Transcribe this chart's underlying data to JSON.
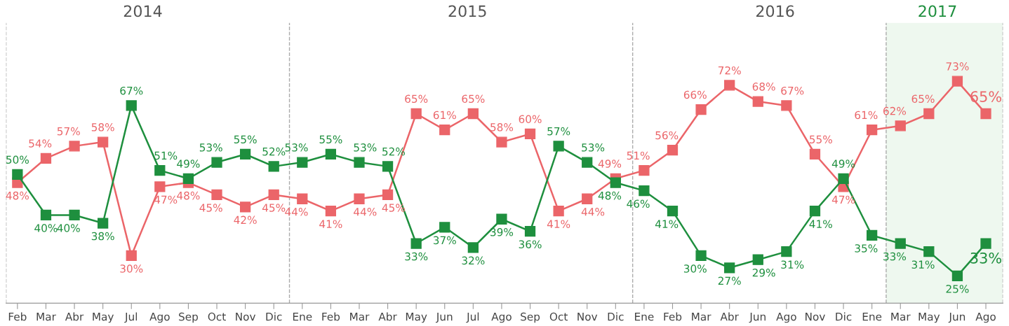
{
  "chart_data": {
    "type": "line",
    "categories": [
      "Feb",
      "Mar",
      "Abr",
      "May",
      "Jul",
      "Ago",
      "Sep",
      "Oct",
      "Nov",
      "Dic",
      "Ene",
      "Feb",
      "Mar",
      "Abr",
      "May",
      "Jun",
      "Jul",
      "Ago",
      "Sep",
      "Oct",
      "Nov",
      "Dic",
      "Ene",
      "Feb",
      "Mar",
      "Abr",
      "Jun",
      "Ago",
      "Nov",
      "Dic",
      "Ene",
      "Mar",
      "May",
      "Jun",
      "Ago"
    ],
    "series": [
      {
        "color": "#eb6569",
        "values": [
          48,
          54,
          57,
          58,
          30,
          47,
          48,
          45,
          42,
          45,
          44,
          41,
          44,
          45,
          65,
          61,
          65,
          58,
          60,
          41,
          44,
          49,
          51,
          56,
          66,
          72,
          68,
          67,
          55,
          47,
          61,
          62,
          65,
          73,
          65
        ],
        "value_labels": [
          "48%",
          "54%",
          "57%",
          "58%",
          "30%",
          "47%",
          "48%",
          "45%",
          "42%",
          "45%",
          "44%",
          "41%",
          "44%",
          "45%",
          "65%",
          "61%",
          "65%",
          "58%",
          "60%",
          "41%",
          "44%",
          "49%",
          "51%",
          "56%",
          "66%",
          "72%",
          "68%",
          "67%",
          "55%",
          "47%",
          "61%",
          "62%",
          "65%",
          "73%",
          "65%"
        ]
      },
      {
        "color": "#1e8f3e",
        "values": [
          50,
          40,
          40,
          38,
          67,
          51,
          49,
          53,
          55,
          52,
          53,
          55,
          53,
          52,
          33,
          37,
          32,
          39,
          36,
          57,
          53,
          48,
          46,
          41,
          30,
          27,
          29,
          31,
          41,
          49,
          35,
          33,
          31,
          25,
          33
        ],
        "value_labels": [
          "50%",
          "40%",
          "40%",
          "38%",
          "67%",
          "51%",
          "49%",
          "53%",
          "55%",
          "52%",
          "53%",
          "55%",
          "53%",
          "52%",
          "33%",
          "37%",
          "32%",
          "39%",
          "36%",
          "57%",
          "53%",
          "48%",
          "46%",
          "41%",
          "30%",
          "27%",
          "29%",
          "31%",
          "41%",
          "49%",
          "35%",
          "33%",
          "31%",
          "25%",
          "33%"
        ]
      }
    ],
    "annotations": [
      "2014",
      "2015",
      "2016",
      "2017"
    ],
    "marker": "square",
    "line_style": "solid",
    "grid": false,
    "legend": false
  }
}
